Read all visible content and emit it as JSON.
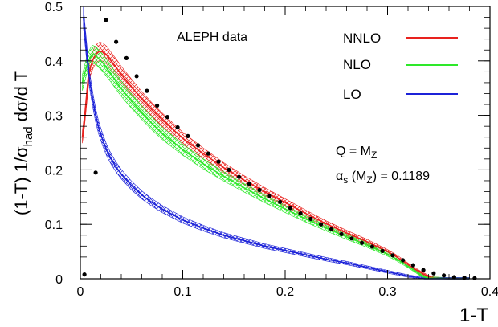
{
  "chart_data": {
    "type": "line",
    "xlabel": "1-T",
    "ylabel_prefix": "(1-T) 1/",
    "ylabel_sigma": "σ",
    "ylabel_sub": "had",
    "ylabel_suffix": " dσ/d T",
    "xlim": [
      0,
      0.4
    ],
    "ylim": [
      0,
      0.5
    ],
    "x_ticks": [
      0,
      0.1,
      0.2,
      0.3,
      0.4
    ],
    "x_tick_labels": [
      "0",
      "0.1",
      "0.2",
      "0.3",
      "0.4"
    ],
    "y_ticks": [
      0,
      0.1,
      0.2,
      0.3,
      0.4,
      0.5
    ],
    "y_tick_labels": [
      "0",
      "0.1",
      "0.2",
      "0.3",
      "0.4",
      "0.5"
    ],
    "annotations": {
      "data_label": "ALEPH data",
      "q_label": "Q = M",
      "q_sub": "Z",
      "alpha_symbol": "α",
      "alpha_sub": "s",
      "alpha_rest": " (M",
      "alpha_rest_sub": "Z",
      "alpha_value": ") = 0.1189"
    },
    "legend_position": "top-right",
    "series": [
      {
        "name": "NNLO",
        "color": "#e8221e",
        "x": [
          0.002,
          0.004,
          0.006,
          0.008,
          0.01,
          0.013,
          0.016,
          0.019,
          0.022,
          0.026,
          0.03,
          0.035,
          0.04,
          0.05,
          0.06,
          0.07,
          0.08,
          0.1,
          0.12,
          0.14,
          0.16,
          0.18,
          0.2,
          0.22,
          0.24,
          0.26,
          0.28,
          0.3,
          0.31,
          0.32,
          0.33,
          0.34,
          0.345,
          0.35,
          0.36,
          0.38
        ],
        "y": [
          0.26,
          0.29,
          0.33,
          0.37,
          0.39,
          0.405,
          0.414,
          0.418,
          0.416,
          0.41,
          0.4,
          0.388,
          0.375,
          0.352,
          0.33,
          0.31,
          0.292,
          0.258,
          0.23,
          0.204,
          0.181,
          0.16,
          0.14,
          0.12,
          0.101,
          0.084,
          0.068,
          0.05,
          0.039,
          0.026,
          0.014,
          0.004,
          0.0015,
          0.0006,
          0.0002,
          0.0
        ]
      },
      {
        "name": "NLO",
        "color": "#2ee82a",
        "x": [
          0.002,
          0.004,
          0.006,
          0.008,
          0.01,
          0.012,
          0.015,
          0.018,
          0.022,
          0.026,
          0.03,
          0.035,
          0.04,
          0.05,
          0.06,
          0.07,
          0.08,
          0.1,
          0.12,
          0.14,
          0.16,
          0.18,
          0.2,
          0.22,
          0.24,
          0.26,
          0.28,
          0.3,
          0.31,
          0.32,
          0.33,
          0.335,
          0.34,
          0.36,
          0.38
        ],
        "y": [
          0.36,
          0.375,
          0.39,
          0.4,
          0.408,
          0.412,
          0.41,
          0.404,
          0.396,
          0.386,
          0.376,
          0.362,
          0.349,
          0.326,
          0.305,
          0.285,
          0.267,
          0.237,
          0.211,
          0.188,
          0.167,
          0.147,
          0.128,
          0.11,
          0.093,
          0.077,
          0.062,
          0.045,
          0.035,
          0.023,
          0.01,
          0.004,
          0.0015,
          0.0,
          0.0
        ]
      },
      {
        "name": "LO",
        "color": "#1c22d8",
        "x": [
          0.003,
          0.005,
          0.007,
          0.009,
          0.012,
          0.015,
          0.018,
          0.022,
          0.026,
          0.03,
          0.035,
          0.04,
          0.05,
          0.06,
          0.07,
          0.08,
          0.1,
          0.12,
          0.14,
          0.16,
          0.18,
          0.2,
          0.22,
          0.24,
          0.26,
          0.28,
          0.3,
          0.31,
          0.32,
          0.33,
          0.336,
          0.35,
          0.38
        ],
        "y": [
          0.48,
          0.44,
          0.4,
          0.365,
          0.33,
          0.3,
          0.277,
          0.254,
          0.235,
          0.22,
          0.205,
          0.192,
          0.171,
          0.154,
          0.14,
          0.128,
          0.108,
          0.093,
          0.08,
          0.07,
          0.06,
          0.052,
          0.044,
          0.036,
          0.029,
          0.021,
          0.013,
          0.009,
          0.005,
          0.002,
          0.0,
          0.0,
          0.0
        ]
      },
      {
        "name": "ALEPH data",
        "type": "scatter",
        "x": [
          0.004,
          0.015,
          0.025,
          0.035,
          0.045,
          0.055,
          0.065,
          0.075,
          0.085,
          0.095,
          0.105,
          0.115,
          0.125,
          0.135,
          0.145,
          0.155,
          0.165,
          0.175,
          0.185,
          0.195,
          0.205,
          0.215,
          0.225,
          0.235,
          0.245,
          0.255,
          0.265,
          0.275,
          0.285,
          0.295,
          0.305,
          0.315,
          0.325,
          0.335,
          0.345,
          0.355,
          0.365,
          0.375,
          0.385
        ],
        "y": [
          0.008,
          0.195,
          0.475,
          0.435,
          0.405,
          0.372,
          0.345,
          0.318,
          0.297,
          0.278,
          0.262,
          0.245,
          0.23,
          0.215,
          0.2,
          0.187,
          0.174,
          0.163,
          0.152,
          0.141,
          0.13,
          0.12,
          0.11,
          0.1,
          0.091,
          0.082,
          0.074,
          0.066,
          0.059,
          0.051,
          0.043,
          0.034,
          0.025,
          0.016,
          0.01,
          0.006,
          0.003,
          0.002,
          0.001
        ]
      }
    ]
  }
}
